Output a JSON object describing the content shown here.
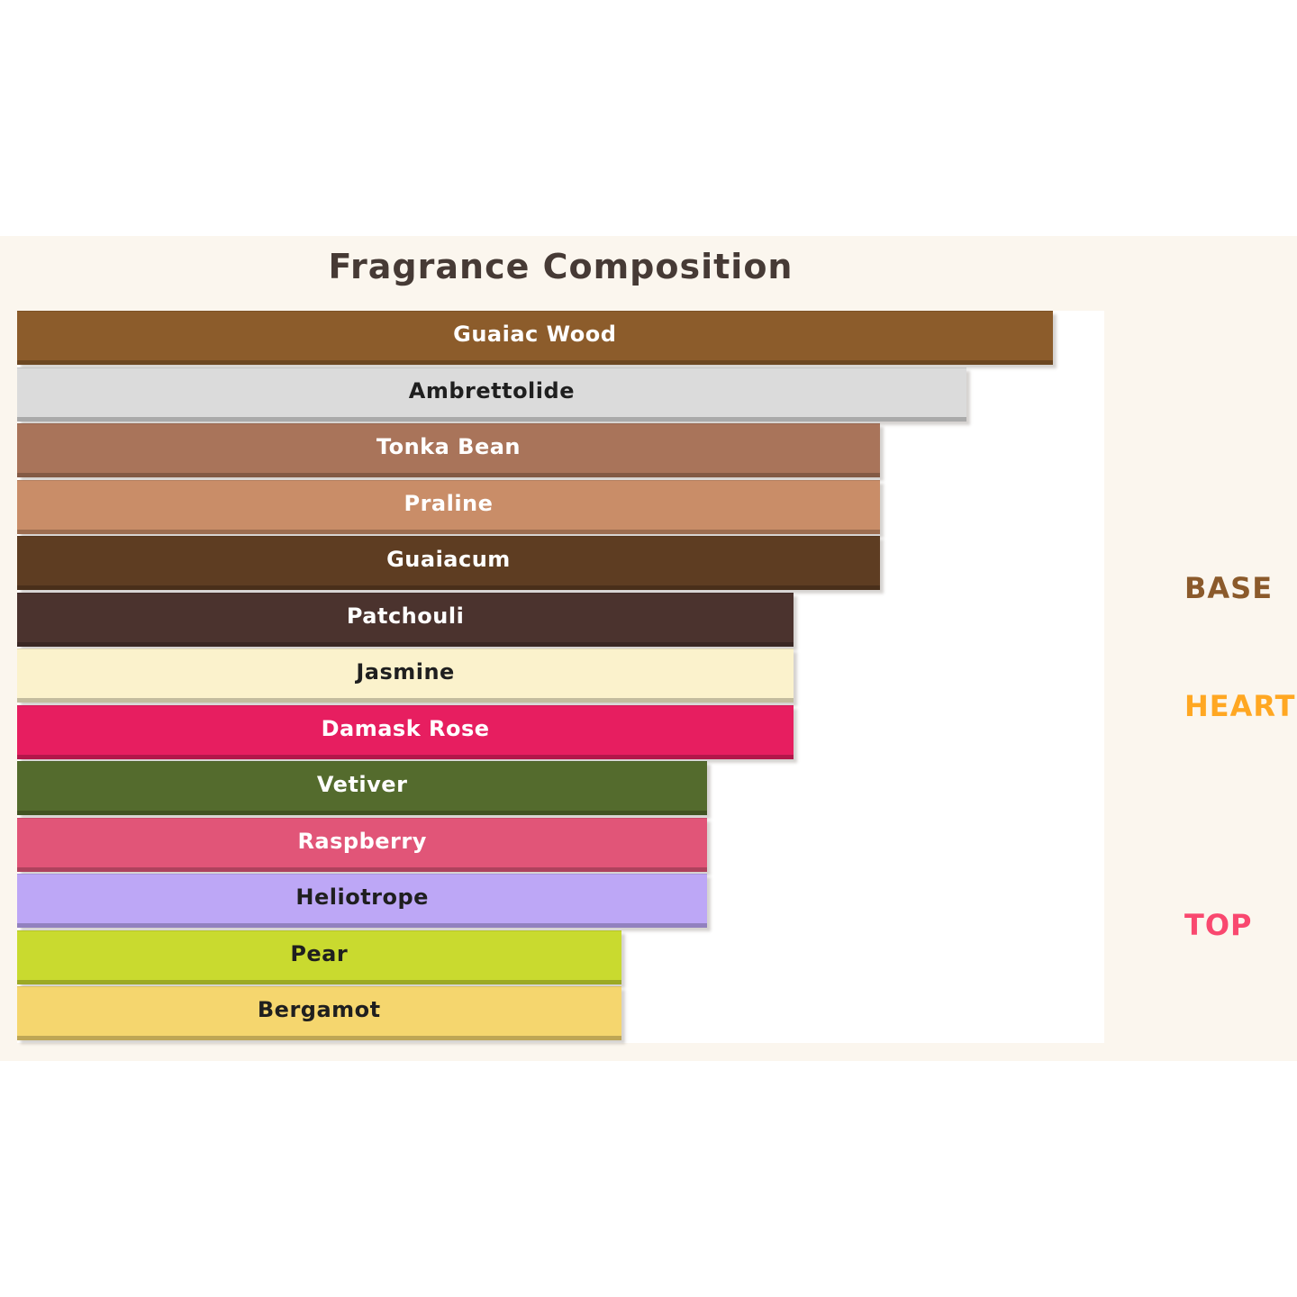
{
  "title": "Fragrance Composition",
  "colors": {
    "page_bg": "#FFFFFF",
    "panel_bg": "#FBF6EE",
    "plot_bg": "#FFFFFF",
    "title_color": "#463A35"
  },
  "group_labels": [
    {
      "label": "BASE",
      "color": "#8B5A2B"
    },
    {
      "label": "HEART",
      "color": "#FFA722"
    },
    {
      "label": "TOP",
      "color": "#F9486F"
    }
  ],
  "chart_data": {
    "type": "bar",
    "orientation": "horizontal",
    "title": "Fragrance Composition",
    "xlabel": "",
    "ylabel": "",
    "xlim": [
      0,
      12.6
    ],
    "grid": false,
    "legend": "none",
    "categories": [
      "Guaiac Wood",
      "Ambrettolide",
      "Tonka Bean",
      "Praline",
      "Guaiacum",
      "Patchouli",
      "Jasmine",
      "Damask Rose",
      "Vetiver",
      "Raspberry",
      "Heliotrope",
      "Pear",
      "Bergamot"
    ],
    "values": [
      12,
      11,
      10,
      10,
      10,
      9,
      9,
      9,
      8,
      8,
      8,
      7,
      7
    ],
    "bar_colors": [
      "#8C5C2B",
      "#DBDBDB",
      "#A9745A",
      "#C98D68",
      "#5E3D22",
      "#4B332E",
      "#FBF2CC",
      "#E71E60",
      "#546B2D",
      "#E15578",
      "#BDA7F6",
      "#C9DA2F",
      "#F5D66E"
    ],
    "label_colors": [
      "#FFFFFF",
      "#1F1F1F",
      "#FFFFFF",
      "#FFFFFF",
      "#FFFFFF",
      "#FFFFFF",
      "#1F1F1F",
      "#FFFFFF",
      "#FFFFFF",
      "#FFFFFF",
      "#1F1F1F",
      "#1F1F1F",
      "#1F1F1F"
    ]
  }
}
